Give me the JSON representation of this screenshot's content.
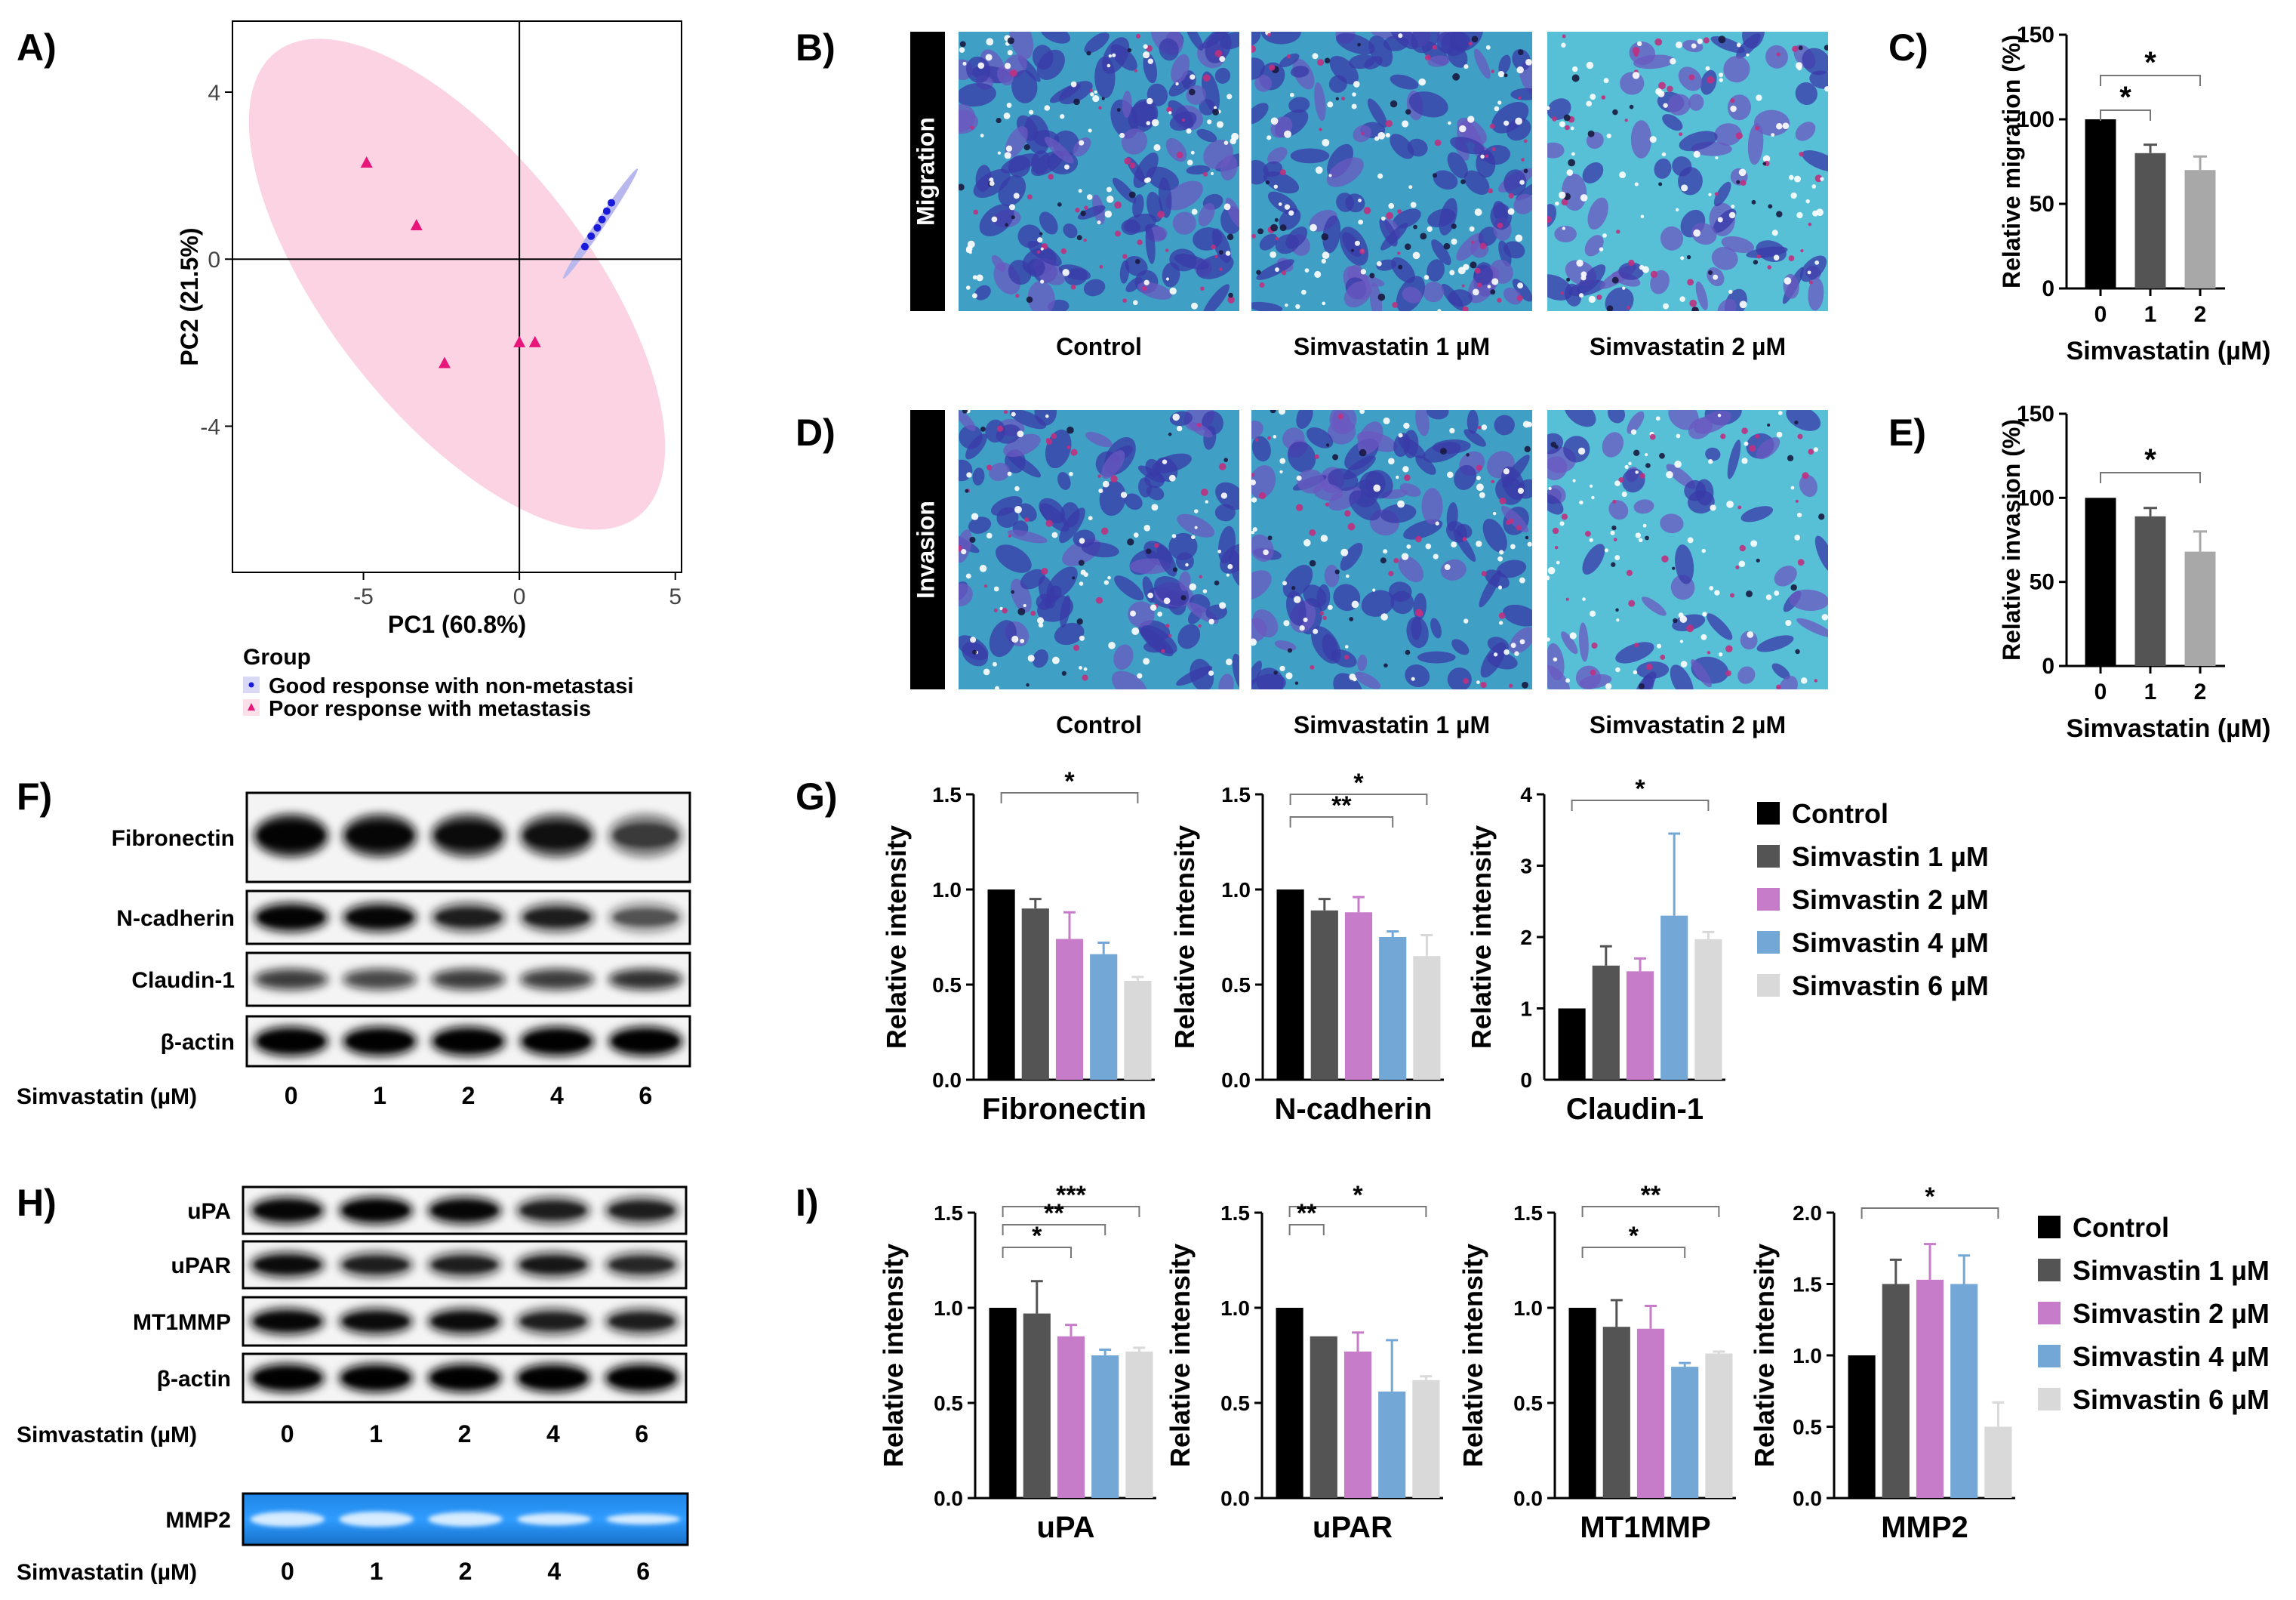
{
  "panel_labels": [
    "A)",
    "B)",
    "C)",
    "D)",
    "E)",
    "F)",
    "G)",
    "H)",
    "I)"
  ],
  "micro": {
    "row_labels": [
      "Migration",
      "Invasion"
    ],
    "captions": [
      "Control",
      "Simvastatin 1 µM",
      "Simvastatin 2 µM"
    ]
  },
  "blots_F": {
    "rows": [
      "Fibronectin",
      "N-cadherin",
      "Claudin-1",
      "β-actin"
    ],
    "xlabel": "Simvastatin (µM)",
    "doses": [
      "0",
      "1",
      "2",
      "4",
      "6"
    ]
  },
  "blots_H": {
    "rows": [
      "uPA",
      "uPAR",
      "MT1MMP",
      "β-actin"
    ],
    "xlabel": "Simvastatin (µM)",
    "doses": [
      "0",
      "1",
      "2",
      "4",
      "6"
    ],
    "zymo_row": "MMP2",
    "zymo_xlabel": "Simvastatin (µM)",
    "zymo_doses": [
      "0",
      "1",
      "2",
      "4",
      "6"
    ]
  },
  "colors": {
    "control": "#000000",
    "s1": "#545454",
    "s2": "#c77cc9",
    "s4": "#73a7d6",
    "s6": "#d9d9d9",
    "s2_cd": "#a8a8a8",
    "pca_good": "#1a1adb",
    "pca_poor": "#e8157a",
    "ellipse_poor": "#fbd3e2",
    "ellipse_good": "#b8b8ee"
  },
  "legend_G": [
    "Control",
    "Simvastin 1 µM",
    "Simvastin 2 µM",
    "Simvastin 4 µM",
    "Simvastin 6 µM"
  ],
  "legend_I": [
    "Control",
    "Simvastin 1 µM",
    "Simvastin 2 µM",
    "Simvastin 4 µM",
    "Simvastin 6 µM"
  ],
  "chart_data": [
    {
      "id": "A",
      "type": "scatter",
      "xlabel": "PC1 (60.8%)",
      "ylabel": "PC2 (21.5%)",
      "xlim": [
        -9.2,
        5.2
      ],
      "ylim": [
        -7.5,
        5.7
      ],
      "xticks": [
        -5,
        0,
        5
      ],
      "yticks": [
        -4,
        0,
        4
      ],
      "legend_title": "Group",
      "series": [
        {
          "name": "Good response with non-metastasi",
          "marker": "circle",
          "x": [
            2.1,
            2.3,
            2.5,
            2.65,
            2.8,
            2.95
          ],
          "y": [
            0.3,
            0.55,
            0.75,
            0.95,
            1.15,
            1.35
          ]
        },
        {
          "name": "Poor response with metastasis",
          "marker": "triangle",
          "x": [
            -4.9,
            -3.3,
            -2.4,
            0.0,
            0.5
          ],
          "y": [
            2.3,
            0.8,
            -2.5,
            -2.0,
            -2.0
          ]
        }
      ]
    },
    {
      "id": "C",
      "type": "bar",
      "categories": [
        "0",
        "1",
        "2"
      ],
      "values": [
        100,
        80,
        70
      ],
      "errors": [
        0,
        5,
        8
      ],
      "xlabel": "Simvastatin (µM)",
      "ylabel": "Relative migration (%)",
      "ylim": [
        0,
        150
      ],
      "yticks": [
        0,
        50,
        100,
        150
      ],
      "significance": [
        {
          "from": 0,
          "to": 1,
          "label": "*"
        },
        {
          "from": 0,
          "to": 2,
          "label": "*"
        }
      ]
    },
    {
      "id": "E",
      "type": "bar",
      "categories": [
        "0",
        "1",
        "2"
      ],
      "values": [
        100,
        89,
        68
      ],
      "errors": [
        0,
        5,
        12
      ],
      "xlabel": "Simvastatin (µM)",
      "ylabel": "Relative invasion (%)",
      "ylim": [
        0,
        150
      ],
      "yticks": [
        0,
        50,
        100,
        150
      ],
      "significance": [
        {
          "from": 0,
          "to": 2,
          "label": "*"
        }
      ]
    },
    {
      "id": "G1",
      "type": "bar",
      "title": "Fibronectin",
      "categories": [
        "Control",
        "Simvastin 1 µM",
        "Simvastin 2 µM",
        "Simvastin 4 µM",
        "Simvastin 6 µM"
      ],
      "values": [
        1.0,
        0.9,
        0.74,
        0.66,
        0.52
      ],
      "errors": [
        0,
        0.05,
        0.14,
        0.06,
        0.02
      ],
      "ylabel": "Relative intensity",
      "ylim": [
        0,
        1.5
      ],
      "yticks": [
        0.0,
        0.5,
        1.0,
        1.5
      ],
      "ytick_labels": [
        "0.0",
        "0.5",
        "1.0",
        "1.5"
      ],
      "significance": [
        {
          "from": 0,
          "to": 4,
          "label": "*"
        }
      ]
    },
    {
      "id": "G2",
      "type": "bar",
      "title": "N-cadherin",
      "categories": [
        "Control",
        "Simvastin 1 µM",
        "Simvastin 2 µM",
        "Simvastin 4 µM",
        "Simvastin 6 µM"
      ],
      "values": [
        1.0,
        0.89,
        0.88,
        0.75,
        0.65
      ],
      "errors": [
        0,
        0.06,
        0.08,
        0.03,
        0.11
      ],
      "ylabel": "Relative intensity",
      "ylim": [
        0,
        1.5
      ],
      "yticks": [
        0.0,
        0.5,
        1.0,
        1.5
      ],
      "ytick_labels": [
        "0.0",
        "0.5",
        "1.0",
        "1.5"
      ],
      "significance": [
        {
          "from": 0,
          "to": 4,
          "label": "*"
        },
        {
          "from": 0,
          "to": 3,
          "label": "**"
        }
      ]
    },
    {
      "id": "G3",
      "type": "bar",
      "title": "Claudin-1",
      "categories": [
        "Control",
        "Simvastin 1 µM",
        "Simvastin 2 µM",
        "Simvastin 4 µM",
        "Simvastin 6 µM"
      ],
      "values": [
        1.0,
        1.6,
        1.52,
        2.3,
        1.97
      ],
      "errors": [
        0,
        0.27,
        0.18,
        1.15,
        0.1
      ],
      "ylabel": "Relative intensity",
      "ylim": [
        0,
        4
      ],
      "yticks": [
        1,
        2,
        3,
        4
      ],
      "ytick_labels": [
        "1",
        "2",
        "3",
        "4"
      ],
      "significance": [
        {
          "from": 0,
          "to": 4,
          "label": "*"
        }
      ]
    },
    {
      "id": "I1",
      "type": "bar",
      "title": "uPA",
      "categories": [
        "Control",
        "Simvastin 1 µM",
        "Simvastin 2 µM",
        "Simvastin 4 µM",
        "Simvastin 6 µM"
      ],
      "values": [
        1.0,
        0.97,
        0.85,
        0.75,
        0.77
      ],
      "errors": [
        0,
        0.17,
        0.06,
        0.03,
        0.02
      ],
      "ylabel": "Relative intensity",
      "ylim": [
        0,
        1.5
      ],
      "yticks": [
        0.0,
        0.5,
        1.0,
        1.5
      ],
      "ytick_labels": [
        "0.0",
        "0.5",
        "1.0",
        "1.5"
      ],
      "significance": [
        {
          "from": 0,
          "to": 4,
          "label": "***"
        },
        {
          "from": 0,
          "to": 3,
          "label": "**"
        },
        {
          "from": 0,
          "to": 2,
          "label": "*"
        }
      ]
    },
    {
      "id": "I2",
      "type": "bar",
      "title": "uPAR",
      "categories": [
        "Control",
        "Simvastin 1 µM",
        "Simvastin 2 µM",
        "Simvastin 4 µM",
        "Simvastin 6 µM"
      ],
      "values": [
        1.0,
        0.85,
        0.77,
        0.56,
        0.62
      ],
      "errors": [
        0,
        0.0,
        0.1,
        0.27,
        0.02
      ],
      "ylabel": "Relative intensity",
      "ylim": [
        0,
        1.5
      ],
      "yticks": [
        0.0,
        0.5,
        1.0,
        1.5
      ],
      "ytick_labels": [
        "0.0",
        "0.5",
        "1.0",
        "1.5"
      ],
      "significance": [
        {
          "from": 0,
          "to": 4,
          "label": "*"
        },
        {
          "from": 0,
          "to": 1,
          "label": "**"
        }
      ]
    },
    {
      "id": "I3",
      "type": "bar",
      "title": "MT1MMP",
      "categories": [
        "Control",
        "Simvastin 1 µM",
        "Simvastin 2 µM",
        "Simvastin 4 µM",
        "Simvastin 6 µM"
      ],
      "values": [
        1.0,
        0.9,
        0.89,
        0.69,
        0.76
      ],
      "errors": [
        0,
        0.14,
        0.12,
        0.02,
        0.01
      ],
      "ylabel": "Relative intensity",
      "ylim": [
        0,
        1.5
      ],
      "yticks": [
        0.0,
        0.5,
        1.0,
        1.5
      ],
      "ytick_labels": [
        "0.0",
        "0.5",
        "1.0",
        "1.5"
      ],
      "significance": [
        {
          "from": 0,
          "to": 4,
          "label": "**"
        },
        {
          "from": 0,
          "to": 3,
          "label": "*"
        }
      ]
    },
    {
      "id": "I4",
      "type": "bar",
      "title": "MMP2",
      "categories": [
        "Control",
        "Simvastin 1 µM",
        "Simvastin 2 µM",
        "Simvastin 4 µM",
        "Simvastin 6 µM"
      ],
      "values": [
        1.0,
        1.5,
        1.53,
        1.5,
        0.5
      ],
      "errors": [
        0,
        0.17,
        0.25,
        0.2,
        0.17
      ],
      "ylabel": "Relative intensity",
      "ylim": [
        0,
        2.0
      ],
      "yticks": [
        0.0,
        0.5,
        1.0,
        1.5,
        2.0
      ],
      "ytick_labels": [
        "0.0",
        "0.5",
        "1.0",
        "1.5",
        "2.0"
      ],
      "significance": [
        {
          "from": 0,
          "to": 4,
          "label": "*"
        }
      ]
    }
  ]
}
